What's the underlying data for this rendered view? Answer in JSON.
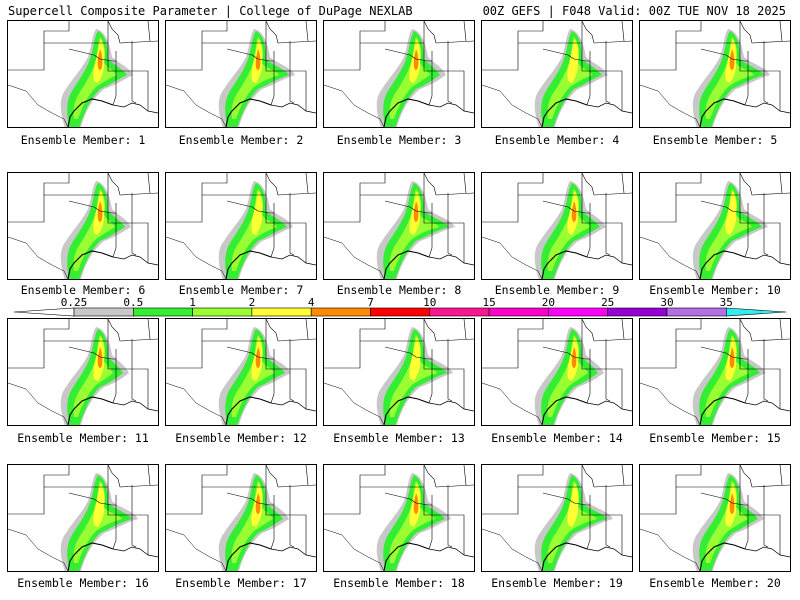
{
  "header": {
    "left_title": "Supercell Composite Parameter | College of DuPage NEXLAB",
    "right_title": "00Z GEFS | F048 Valid: 00Z TUE NOV 18 2025"
  },
  "caption_prefix": "Ensemble Member: ",
  "members": [
    1,
    2,
    3,
    4,
    5,
    6,
    7,
    8,
    9,
    10,
    11,
    12,
    13,
    14,
    15,
    16,
    17,
    18,
    19,
    20
  ],
  "legend": {
    "ticks": [
      "0.25",
      "0.5",
      "1",
      "2",
      "4",
      "7",
      "10",
      "15",
      "20",
      "25",
      "30",
      "35"
    ],
    "colors": [
      "#c8c8c8",
      "#33ee33",
      "#99ff33",
      "#ffff33",
      "#ff8c00",
      "#ff0000",
      "#ff1493",
      "#ff00cc",
      "#ff00ff",
      "#9400d3",
      "#b46ee6",
      "#33eeee"
    ]
  },
  "fill_colors": {
    "gray": "#c8c8c8",
    "green": "#33ee33",
    "lightgreen": "#99ff33",
    "yellow": "#ffff33",
    "orange": "#ff8c00"
  }
}
